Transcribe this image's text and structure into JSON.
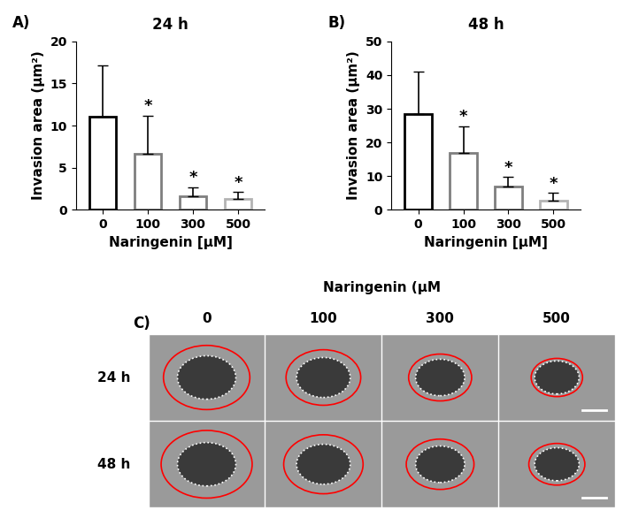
{
  "chart_data": [
    {
      "type": "bar",
      "panel": "A)",
      "title": "24 h",
      "x_label": "Naringenin [µM]",
      "y_label": "Invasion area (µm²)",
      "categories": [
        "0",
        "100",
        "300",
        "500"
      ],
      "values": [
        11.1,
        6.6,
        1.6,
        1.3
      ],
      "errors": [
        6.1,
        4.6,
        1.1,
        0.8
      ],
      "colors": [
        "#000000",
        "#7f7f7f",
        "#7f7f7f",
        "#b3b3b3"
      ],
      "annotations": [
        {
          "category": "100",
          "text": "*"
        },
        {
          "category": "300",
          "text": "*"
        },
        {
          "category": "500",
          "text": "*"
        }
      ],
      "ylim": [
        0,
        20
      ],
      "yticks": [
        0,
        5,
        10,
        15,
        20
      ],
      "grid": false
    },
    {
      "type": "bar",
      "panel": "B)",
      "title": "48 h",
      "x_label": "Naringenin [µM]",
      "y_label": "Invasion area (µm²)",
      "categories": [
        "0",
        "100",
        "300",
        "500"
      ],
      "values": [
        28.5,
        17.0,
        7.0,
        2.8
      ],
      "errors": [
        12.5,
        7.8,
        2.8,
        2.2
      ],
      "colors": [
        "#000000",
        "#7f7f7f",
        "#7f7f7f",
        "#b3b3b3"
      ],
      "annotations": [
        {
          "category": "100",
          "text": "*"
        },
        {
          "category": "300",
          "text": "*"
        },
        {
          "category": "500",
          "text": "*"
        }
      ],
      "ylim": [
        0,
        50
      ],
      "yticks": [
        0,
        10,
        20,
        30,
        40,
        50
      ],
      "grid": false
    }
  ],
  "image_panel": {
    "panel": "C)",
    "title": "Naringenin (µM",
    "columns": [
      "0",
      "100",
      "300",
      "500"
    ],
    "rows": [
      "24 h",
      "48 h"
    ]
  }
}
